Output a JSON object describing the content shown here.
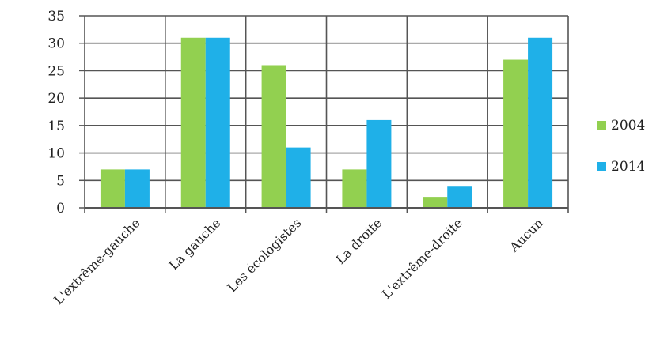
{
  "chart_data": {
    "type": "bar",
    "categories": [
      "L'extrême-gauche",
      "La gauche",
      "Les écologistes",
      "La droite",
      "L'extrême-droite",
      "Aucun"
    ],
    "series": [
      {
        "name": "2004",
        "values": [
          7,
          31,
          26,
          7,
          2,
          27
        ],
        "color": "#92d050"
      },
      {
        "name": "2014",
        "values": [
          7,
          31,
          11,
          16,
          4,
          31
        ],
        "color": "#1fb0e8"
      }
    ],
    "ylim": [
      0,
      35
    ],
    "yticks": [
      "0",
      "5",
      "10",
      "15",
      "20",
      "25",
      "30",
      "35"
    ],
    "grid": true,
    "legend_position": "right"
  }
}
